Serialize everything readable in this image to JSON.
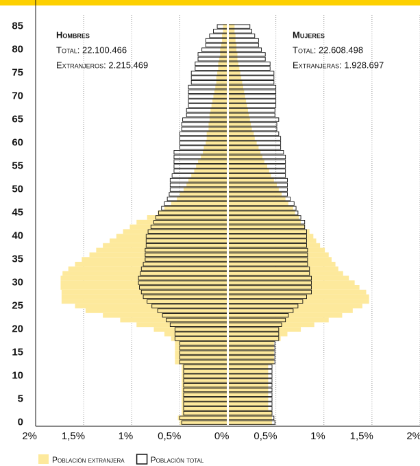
{
  "chart_data": {
    "type": "pyramid",
    "categories": [
      0,
      null,
      null,
      null,
      null,
      5,
      null,
      null,
      null,
      null,
      10,
      null,
      null,
      null,
      null,
      15,
      null,
      null,
      null,
      null,
      20,
      null,
      null,
      null,
      null,
      25,
      null,
      null,
      null,
      null,
      30,
      null,
      null,
      null,
      null,
      35,
      null,
      null,
      null,
      null,
      40,
      null,
      null,
      null,
      null,
      45,
      null,
      null,
      null,
      null,
      50,
      null,
      null,
      null,
      null,
      55,
      null,
      null,
      null,
      null,
      60,
      null,
      null,
      null,
      null,
      65,
      null,
      null,
      null,
      null,
      70,
      null,
      null,
      null,
      null,
      75,
      null,
      null,
      null,
      null,
      80,
      null,
      null,
      null,
      null,
      85
    ],
    "xlim": [
      -2,
      2
    ],
    "xticks": [
      {
        "value": -2,
        "label": "2%"
      },
      {
        "value": -1.5,
        "label": "1,5%"
      },
      {
        "value": -1,
        "label": "1%"
      },
      {
        "value": -0.5,
        "label": "0,5%"
      },
      {
        "value": 0,
        "label": "0%"
      },
      {
        "value": 0.5,
        "label": "0,5%"
      },
      {
        "value": 1,
        "label": "1%"
      },
      {
        "value": 1.5,
        "label": "1,5%"
      },
      {
        "value": 2,
        "label": "2%"
      }
    ],
    "grid": true,
    "legend": [
      {
        "name": "Población extranjera",
        "color": "#fde99c"
      },
      {
        "name": "Población total",
        "color": "#ffffff"
      }
    ],
    "sides": [
      {
        "direction": "left",
        "title": "Hombres",
        "notes": [
          "Total: 22.100.466",
          "Extranjeros: 2.215.469"
        ],
        "foreign": [
          0.5,
          0.52,
          0.48,
          0.48,
          0.48,
          0.48,
          0.48,
          0.48,
          0.48,
          0.48,
          0.48,
          0.48,
          0.48,
          0.55,
          0.55,
          0.55,
          0.55,
          0.55,
          0.59,
          0.66,
          0.77,
          0.95,
          1.12,
          1.3,
          1.48,
          1.59,
          1.73,
          1.73,
          1.73,
          1.74,
          1.74,
          1.74,
          1.72,
          1.66,
          1.59,
          1.52,
          1.44,
          1.37,
          1.3,
          1.23,
          1.16,
          1.09,
          1.02,
          0.95,
          0.84,
          0.73,
          0.66,
          0.59,
          0.53,
          0.5,
          0.46,
          0.43,
          0.41,
          0.38,
          0.35,
          0.33,
          0.31,
          0.28,
          0.26,
          0.25,
          0.23,
          0.22,
          0.22,
          0.2,
          0.2,
          0.19,
          0.19,
          0.18,
          0.17,
          0.16,
          0.15,
          0.14,
          0.13,
          0.12,
          0.12,
          0.11,
          0.1,
          0.1,
          0.09,
          0.08,
          0.08,
          0.07,
          0.06,
          0.06,
          0.05,
          0.05
        ],
        "total": [
          0.48,
          0.5,
          0.46,
          0.46,
          0.46,
          0.46,
          0.46,
          0.46,
          0.46,
          0.46,
          0.46,
          0.46,
          0.46,
          0.5,
          0.5,
          0.5,
          0.5,
          0.5,
          0.55,
          0.55,
          0.55,
          0.6,
          0.64,
          0.68,
          0.73,
          0.79,
          0.84,
          0.88,
          0.9,
          0.92,
          0.93,
          0.93,
          0.91,
          0.9,
          0.88,
          0.86,
          0.86,
          0.86,
          0.85,
          0.85,
          0.85,
          0.83,
          0.8,
          0.77,
          0.75,
          0.72,
          0.69,
          0.66,
          0.63,
          0.61,
          0.6,
          0.6,
          0.6,
          0.58,
          0.56,
          0.56,
          0.56,
          0.56,
          0.56,
          0.5,
          0.5,
          0.5,
          0.5,
          0.48,
          0.48,
          0.47,
          0.43,
          0.43,
          0.41,
          0.41,
          0.41,
          0.41,
          0.41,
          0.38,
          0.38,
          0.38,
          0.34,
          0.34,
          0.31,
          0.31,
          0.27,
          0.23,
          0.23,
          0.19,
          0.15,
          0.11
        ]
      },
      {
        "direction": "right",
        "title": "Mujeres",
        "notes": [
          "Total: 22.608.498",
          "Extranjeras: 1.928.697"
        ],
        "foreign": [
          0.46,
          0.46,
          0.46,
          0.42,
          0.42,
          0.42,
          0.42,
          0.42,
          0.42,
          0.42,
          0.42,
          0.42,
          0.42,
          0.48,
          0.48,
          0.48,
          0.48,
          0.48,
          0.55,
          0.62,
          0.76,
          0.9,
          1.05,
          1.19,
          1.3,
          1.4,
          1.47,
          1.47,
          1.44,
          1.37,
          1.32,
          1.26,
          1.2,
          1.15,
          1.12,
          1.08,
          1.05,
          1.01,
          0.96,
          0.92,
          0.89,
          0.85,
          0.8,
          0.76,
          0.74,
          0.7,
          0.68,
          0.63,
          0.6,
          0.56,
          0.53,
          0.51,
          0.48,
          0.45,
          0.43,
          0.41,
          0.38,
          0.36,
          0.34,
          0.32,
          0.3,
          0.28,
          0.27,
          0.25,
          0.24,
          0.23,
          0.22,
          0.21,
          0.2,
          0.19,
          0.18,
          0.17,
          0.16,
          0.15,
          0.14,
          0.13,
          0.12,
          0.11,
          0.1,
          0.1,
          0.09,
          0.09,
          0.08,
          0.08,
          0.07,
          0.07
        ],
        "total": [
          0.49,
          0.48,
          0.46,
          0.46,
          0.46,
          0.46,
          0.46,
          0.46,
          0.46,
          0.46,
          0.46,
          0.46,
          0.46,
          0.49,
          0.49,
          0.49,
          0.49,
          0.49,
          0.53,
          0.53,
          0.53,
          0.56,
          0.6,
          0.63,
          0.68,
          0.73,
          0.78,
          0.82,
          0.87,
          0.87,
          0.87,
          0.87,
          0.85,
          0.85,
          0.83,
          0.83,
          0.83,
          0.83,
          0.82,
          0.82,
          0.82,
          0.82,
          0.8,
          0.8,
          0.76,
          0.73,
          0.71,
          0.69,
          0.65,
          0.62,
          0.62,
          0.62,
          0.62,
          0.6,
          0.6,
          0.6,
          0.6,
          0.6,
          0.58,
          0.55,
          0.55,
          0.55,
          0.53,
          0.51,
          0.51,
          0.53,
          0.49,
          0.49,
          0.5,
          0.5,
          0.5,
          0.5,
          0.5,
          0.48,
          0.48,
          0.48,
          0.44,
          0.44,
          0.39,
          0.39,
          0.35,
          0.32,
          0.32,
          0.28,
          0.25,
          0.23
        ]
      }
    ]
  }
}
